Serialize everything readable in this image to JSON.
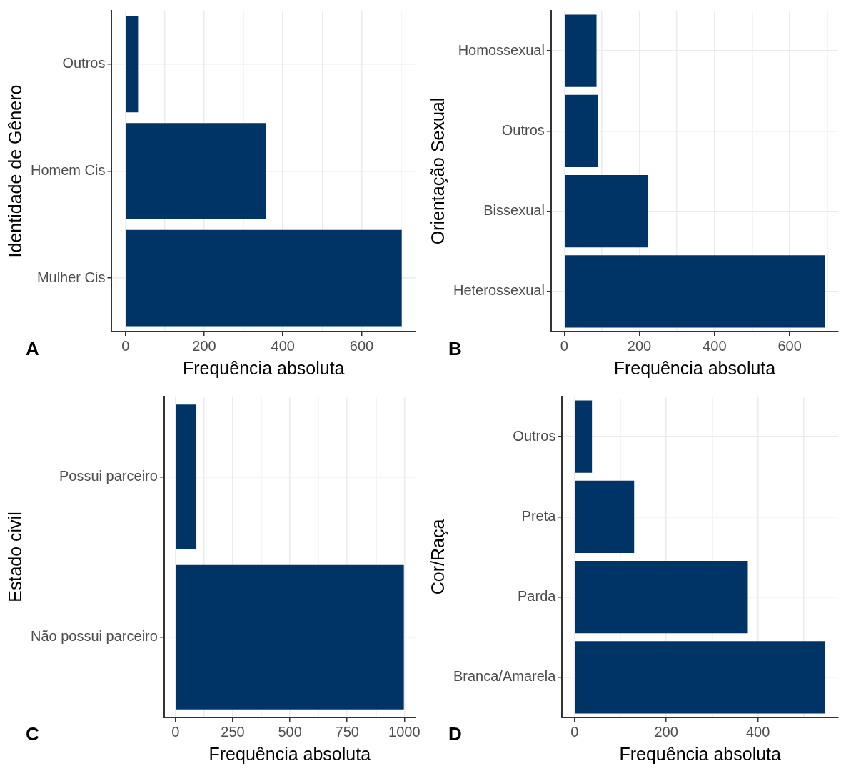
{
  "chart_data": [
    {
      "type": "bar",
      "orientation": "horizontal",
      "categories": [
        "Outros",
        "Homem Cis",
        "Mulher Cis"
      ],
      "values": [
        32,
        357,
        702
      ],
      "color": "#003366",
      "xlabel": "Frequência absoluta",
      "ylabel": "Identidade de Gênero",
      "xlim": [
        -35,
        737
      ],
      "xticks": [
        0,
        {
          "value": 100,
          "label": null
        },
        200,
        {
          "value": 300,
          "label": null
        },
        400,
        {
          "value": 500,
          "label": null
        },
        600,
        {
          "value": 700,
          "label": null
        }
      ],
      "grid": true,
      "annotations": [
        "A"
      ]
    },
    {
      "type": "bar",
      "orientation": "horizontal",
      "categories": [
        "Homossexual",
        "Outros",
        "Bissexual",
        "Heterossexual"
      ],
      "values": [
        86,
        90,
        222,
        694
      ],
      "color": "#003366",
      "xlabel": "Frequência absoluta",
      "ylabel": "Orientação Sexual",
      "xlim": [
        -35,
        729
      ],
      "xticks": [
        0,
        {
          "value": 100,
          "label": null
        },
        200,
        {
          "value": 300,
          "label": null
        },
        400,
        {
          "value": 500,
          "label": null
        },
        600,
        {
          "value": 700,
          "label": null
        }
      ],
      "grid": true,
      "annotations": [
        "B"
      ]
    },
    {
      "type": "bar",
      "orientation": "horizontal",
      "categories": [
        "Possui parceiro",
        "Não possui parceiro"
      ],
      "values": [
        91,
        998
      ],
      "color": "#003366",
      "xlabel": "Frequência absoluta",
      "ylabel": "Estado civil",
      "xlim": [
        -50,
        1048
      ],
      "xticks": [
        0,
        {
          "value": 125,
          "label": null
        },
        250,
        {
          "value": 375,
          "label": null
        },
        500,
        {
          "value": 625,
          "label": null
        },
        750,
        {
          "value": 875,
          "label": null
        },
        1000
      ],
      "grid": true,
      "annotations": [
        "C"
      ]
    },
    {
      "type": "bar",
      "orientation": "horizontal",
      "categories": [
        "Outros",
        "Preta",
        "Parda",
        "Branca/Amarela"
      ],
      "values": [
        38,
        130,
        378,
        547
      ],
      "color": "#003366",
      "xlabel": "Frequência absoluta",
      "ylabel": "Cor/Raça",
      "xlim": [
        -27,
        575
      ],
      "xticks": [
        0,
        {
          "value": 100,
          "label": null
        },
        200,
        {
          "value": 300,
          "label": null
        },
        400,
        {
          "value": 500,
          "label": null
        }
      ],
      "grid": true,
      "annotations": [
        "D"
      ]
    }
  ]
}
